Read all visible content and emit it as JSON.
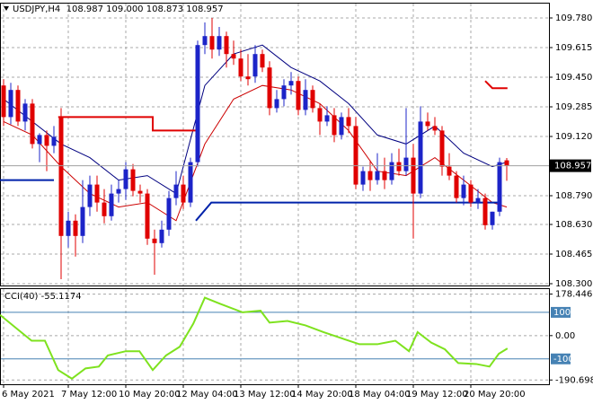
{
  "chart_data": {
    "type": "candlestick",
    "title": "USDJPY,H4  108.987 109.000 108.873 108.957",
    "ylim": [
      108.29,
      109.86
    ],
    "yticks": [
      {
        "value": 109.78,
        "label": "109.780"
      },
      109.615,
      {
        "value": 109.45,
        "label": "109.450"
      },
      109.285,
      {
        "value": 109.12,
        "label": "109.120"
      },
      {
        "value": 108.79,
        "label": "108.790"
      },
      {
        "value": 108.63,
        "label": "108.630"
      },
      108.465,
      {
        "value": 108.3,
        "label": "108.300"
      }
    ],
    "last_price": {
      "value": 108.957,
      "label": "108.957"
    },
    "xlim": [
      -0.5,
      72.5
    ],
    "xticks": [
      {
        "value": 0,
        "label": "6 May 2021"
      },
      {
        "value": 9,
        "label": "7 May 12:00"
      },
      {
        "value": 17,
        "label": "10 May 20:00"
      },
      {
        "value": 25,
        "label": "12 May 04:00"
      },
      {
        "value": 33,
        "label": "13 May 12:00"
      },
      {
        "value": 41,
        "label": "14 May 20:00"
      },
      {
        "value": 49,
        "label": "18 May 04:00"
      },
      {
        "value": 57,
        "label": "19 May 12:00"
      },
      {
        "value": 65,
        "label": "20 May 20:00"
      }
    ],
    "grid": true,
    "up_color": "#1c24c8",
    "down_color": "#e00000",
    "ohlc": [
      [
        109.404,
        109.439,
        109.178,
        109.228
      ],
      [
        109.228,
        109.419,
        109.188,
        109.379
      ],
      [
        109.379,
        109.404,
        109.178,
        109.203
      ],
      [
        109.203,
        109.328,
        109.153,
        109.303
      ],
      [
        109.303,
        109.328,
        109.053,
        109.078
      ],
      [
        109.078,
        109.138,
        108.977,
        109.128
      ],
      [
        109.128,
        109.153,
        108.927,
        109.068
      ],
      [
        109.068,
        109.178,
        109.027,
        109.118
      ],
      [
        109.228,
        109.278,
        108.325,
        108.566
      ],
      [
        108.566,
        108.701,
        108.501,
        108.651
      ],
      [
        108.651,
        108.686,
        108.451,
        108.566
      ],
      [
        108.566,
        108.877,
        108.526,
        108.727
      ],
      [
        108.727,
        108.902,
        108.676,
        108.852
      ],
      [
        108.852,
        108.902,
        108.701,
        108.752
      ],
      [
        108.752,
        108.827,
        108.636,
        108.676
      ],
      [
        108.676,
        108.852,
        108.651,
        108.802
      ],
      [
        108.802,
        108.877,
        108.752,
        108.827
      ],
      [
        108.827,
        108.977,
        108.767,
        108.937
      ],
      [
        108.937,
        108.967,
        108.787,
        108.817
      ],
      [
        108.817,
        108.852,
        108.752,
        108.802
      ],
      [
        108.802,
        108.827,
        108.516,
        108.551
      ],
      [
        108.551,
        108.601,
        108.35,
        108.526
      ],
      [
        108.526,
        108.651,
        108.501,
        108.601
      ],
      [
        108.601,
        108.817,
        108.566,
        108.777
      ],
      [
        108.777,
        108.927,
        108.737,
        108.852
      ],
      [
        108.852,
        108.902,
        108.716,
        108.752
      ],
      [
        108.752,
        109.002,
        108.727,
        108.977
      ],
      [
        108.977,
        109.654,
        108.952,
        109.629
      ],
      [
        109.629,
        109.755,
        109.579,
        109.679
      ],
      [
        109.679,
        109.78,
        109.554,
        109.604
      ],
      [
        109.604,
        109.73,
        109.569,
        109.679
      ],
      [
        109.679,
        109.704,
        109.504,
        109.579
      ],
      [
        109.579,
        109.654,
        109.519,
        109.554
      ],
      [
        109.554,
        109.604,
        109.429,
        109.454
      ],
      [
        109.454,
        109.579,
        109.404,
        109.439
      ],
      [
        109.454,
        109.629,
        109.419,
        109.579
      ],
      [
        109.579,
        109.604,
        109.479,
        109.504
      ],
      [
        109.504,
        109.539,
        109.238,
        109.278
      ],
      [
        109.278,
        109.379,
        109.253,
        109.328
      ],
      [
        109.328,
        109.439,
        109.288,
        109.404
      ],
      [
        109.404,
        109.479,
        109.353,
        109.429
      ],
      [
        109.429,
        109.454,
        109.238,
        109.268
      ],
      [
        109.268,
        109.439,
        109.238,
        109.379
      ],
      [
        109.379,
        109.404,
        109.253,
        109.278
      ],
      [
        109.278,
        109.303,
        109.128,
        109.203
      ],
      [
        109.203,
        109.288,
        109.178,
        109.238
      ],
      [
        109.238,
        109.278,
        109.088,
        109.128
      ],
      [
        109.128,
        109.253,
        109.103,
        109.228
      ],
      [
        109.228,
        109.278,
        109.138,
        109.178
      ],
      [
        109.178,
        109.228,
        108.827,
        108.852
      ],
      [
        108.852,
        108.952,
        108.817,
        108.927
      ],
      [
        108.927,
        108.987,
        108.817,
        108.877
      ],
      [
        108.877,
        109.027,
        108.852,
        108.927
      ],
      [
        108.927,
        109.002,
        108.827,
        108.877
      ],
      [
        108.877,
        109.027,
        108.852,
        108.977
      ],
      [
        108.977,
        109.052,
        108.902,
        108.927
      ],
      [
        108.927,
        109.278,
        108.902,
        109.002
      ],
      [
        109.002,
        109.078,
        108.551,
        108.802
      ],
      [
        108.802,
        109.288,
        108.777,
        109.203
      ],
      [
        109.203,
        109.253,
        109.153,
        109.178
      ],
      [
        109.178,
        109.228,
        109.128,
        109.153
      ],
      [
        109.153,
        109.178,
        108.902,
        108.952
      ],
      [
        108.952,
        109.027,
        108.877,
        108.902
      ],
      [
        108.902,
        108.927,
        108.752,
        108.777
      ],
      [
        108.777,
        108.902,
        108.737,
        108.852
      ],
      [
        108.852,
        108.877,
        108.727,
        108.752
      ],
      [
        108.752,
        108.827,
        108.716,
        108.777
      ],
      [
        108.777,
        108.802,
        108.601,
        108.626
      ],
      [
        108.626,
        108.701,
        108.601,
        108.701
      ],
      [
        108.701,
        109.002,
        108.676,
        108.977
      ],
      [
        108.987,
        109.0,
        108.873,
        108.957
      ]
    ],
    "overlays": [
      {
        "color": "#000080",
        "width": 1,
        "x": [
          0,
          4,
          8,
          12,
          16,
          20,
          24,
          28,
          32,
          36,
          40,
          44,
          48,
          52,
          56,
          60,
          64,
          68,
          70
        ],
        "values": [
          109.328,
          109.203,
          109.078,
          109.002,
          108.877,
          108.902,
          108.802,
          109.404,
          109.579,
          109.629,
          109.504,
          109.429,
          109.303,
          109.128,
          109.078,
          109.178,
          109.027,
          108.952,
          108.977
        ]
      },
      {
        "color": "#cc0000",
        "width": 1,
        "x": [
          0,
          4,
          8,
          12,
          16,
          20,
          24,
          28,
          32,
          36,
          40,
          44,
          48,
          52,
          56,
          60,
          64,
          68,
          70
        ],
        "values": [
          109.203,
          109.128,
          108.952,
          108.802,
          108.727,
          108.752,
          108.651,
          109.078,
          109.328,
          109.404,
          109.379,
          109.303,
          109.153,
          108.927,
          108.902,
          109.002,
          108.877,
          108.752,
          108.727
        ]
      },
      {
        "color": "#e00000",
        "width": 2,
        "x": [
          7.6,
          20.75,
          20.75,
          27.25,
          null,
          67,
          68,
          70.1
        ],
        "values": [
          109.228,
          109.228,
          109.153,
          109.153,
          null,
          109.429,
          109.389,
          109.389
        ]
      },
      {
        "color": "#0022aa",
        "width": 2,
        "x": [
          -0.5,
          7,
          null,
          26.75,
          28.9,
          68.9
        ],
        "values": [
          108.877,
          108.877,
          null,
          108.651,
          108.752,
          108.752
        ]
      }
    ],
    "cci": {
      "title": "CCI(40) -55.1174",
      "color": "#7ee21e",
      "ylim": [
        -209,
        200
      ],
      "yticks": [
        178.4469,
        {
          "value": 0,
          "label": "0.00"
        },
        -190.6983
      ],
      "levels": [
        100,
        -100
      ],
      "level_color": "#4682b4",
      "x": [
        -0.5,
        2,
        3.9,
        5.75,
        7.6,
        9.5,
        11.4,
        13.25,
        14.5,
        17,
        18.9,
        20.75,
        22.6,
        24.5,
        26.4,
        28,
        30.1,
        33.25,
        35.75,
        37,
        39.5,
        42,
        44.5,
        47,
        49.5,
        52,
        54.5,
        56.4,
        57.6,
        59.5,
        61.4,
        63.25,
        65.75,
        67.6,
        68.9,
        70.1
      ],
      "values": [
        89,
        26,
        -22,
        -22,
        -148,
        -185,
        -141,
        -133,
        -85,
        -67,
        -67,
        -148,
        -85,
        -48,
        52,
        163,
        137,
        100,
        107,
        56,
        63,
        44,
        15,
        -11,
        -37,
        -37,
        -22,
        -67,
        15,
        -30,
        -59,
        -118,
        -122,
        -133,
        -78,
        -55.1174
      ]
    }
  }
}
